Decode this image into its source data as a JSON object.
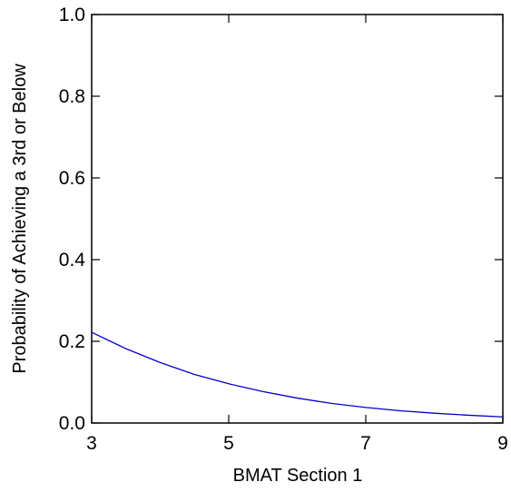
{
  "chart_data": {
    "type": "line",
    "title": "",
    "xlabel": "BMAT Section 1",
    "ylabel": "Probability of Achieving a 3rd or Below",
    "xlim": [
      3,
      9
    ],
    "ylim": [
      0,
      1
    ],
    "x_ticks": [
      "3",
      "5",
      "7",
      "9"
    ],
    "y_ticks": [
      "0.0",
      "0.2",
      "0.4",
      "0.6",
      "0.8",
      "1.0"
    ],
    "grid": false,
    "legend": "none",
    "series": [
      {
        "color": "#0000cc",
        "x": [
          3.0,
          3.5,
          4.0,
          4.5,
          5.0,
          5.5,
          6.0,
          6.5,
          7.0,
          7.5,
          8.0,
          8.5,
          9.0
        ],
        "y": [
          0.222,
          0.182,
          0.148,
          0.119,
          0.096,
          0.077,
          0.061,
          0.048,
          0.038,
          0.03,
          0.024,
          0.019,
          0.015
        ]
      }
    ]
  }
}
